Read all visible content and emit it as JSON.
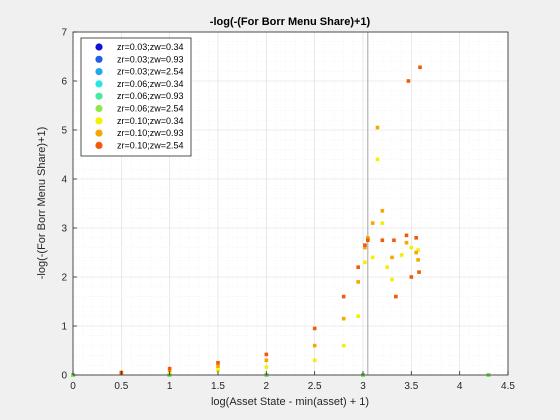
{
  "chart_data": {
    "type": "scatter",
    "title": "-log(-(For Borr Menu Share)+1)",
    "xlabel": "log(Asset State - min(asset) + 1)",
    "ylabel": "-log(-(For Borr Menu Share)+1)",
    "xlim": [
      0,
      4.5
    ],
    "ylim": [
      0,
      7
    ],
    "xticks": [
      "0",
      "0.5",
      "1",
      "1.5",
      "2",
      "2.5",
      "3",
      "3.5",
      "4",
      "4.5"
    ],
    "yticks": [
      "0",
      "1",
      "2",
      "3",
      "4",
      "5",
      "6",
      "7"
    ],
    "grid": true,
    "legend_position": "top-left",
    "reference_line_x": 3.05,
    "series": [
      {
        "name": "zr=0.03;zw=0.34",
        "color": "#1010d8",
        "points": [
          [
            0,
            0
          ],
          [
            1.0,
            0
          ],
          [
            2.0,
            0
          ],
          [
            3.0,
            0
          ],
          [
            4.3,
            0
          ]
        ]
      },
      {
        "name": "zr=0.03;zw=0.93",
        "color": "#1f5fe8",
        "points": [
          [
            0,
            0
          ],
          [
            1.0,
            0
          ],
          [
            2.0,
            0
          ],
          [
            3.0,
            0
          ],
          [
            4.3,
            0
          ]
        ]
      },
      {
        "name": "zr=0.03;zw=2.54",
        "color": "#22a6ee",
        "points": [
          [
            0,
            0
          ],
          [
            1.0,
            0
          ],
          [
            2.0,
            0
          ],
          [
            3.0,
            0
          ],
          [
            4.3,
            0
          ]
        ]
      },
      {
        "name": "zr=0.06;zw=0.34",
        "color": "#29e6e6",
        "points": [
          [
            0,
            0
          ],
          [
            1.0,
            0
          ],
          [
            2.0,
            0
          ],
          [
            3.0,
            0
          ],
          [
            4.3,
            0
          ]
        ]
      },
      {
        "name": "zr=0.06;zw=0.93",
        "color": "#48e8a0",
        "points": [
          [
            0,
            0
          ],
          [
            1.0,
            0
          ],
          [
            2.0,
            0
          ],
          [
            3.0,
            0
          ],
          [
            4.3,
            0
          ]
        ]
      },
      {
        "name": "zr=0.06;zw=2.54",
        "color": "#8ee848",
        "points": [
          [
            0,
            0
          ],
          [
            1.0,
            0
          ],
          [
            2.0,
            0
          ],
          [
            3.0,
            0
          ],
          [
            4.3,
            0
          ]
        ]
      },
      {
        "name": "zr=0.10;zw=0.34",
        "color": "#f2f200",
        "points": [
          [
            0.5,
            0.04
          ],
          [
            1.0,
            0.07
          ],
          [
            1.5,
            0.1
          ],
          [
            2.0,
            0.16
          ],
          [
            2.5,
            0.3
          ],
          [
            2.8,
            0.6
          ],
          [
            2.95,
            1.2
          ],
          [
            3.02,
            2.3
          ],
          [
            3.05,
            2.8
          ],
          [
            3.1,
            2.4
          ],
          [
            3.15,
            4.4
          ],
          [
            3.2,
            3.1
          ],
          [
            3.25,
            2.2
          ],
          [
            3.3,
            1.95
          ],
          [
            3.4,
            2.45
          ],
          [
            3.5,
            2.6
          ],
          [
            3.57,
            2.55
          ]
        ]
      },
      {
        "name": "zr=0.10;zw=0.93",
        "color": "#f5a800",
        "points": [
          [
            0.5,
            0.05
          ],
          [
            1.0,
            0.1
          ],
          [
            1.5,
            0.18
          ],
          [
            2.0,
            0.3
          ],
          [
            2.5,
            0.6
          ],
          [
            2.8,
            1.15
          ],
          [
            2.95,
            1.9
          ],
          [
            3.02,
            2.6
          ],
          [
            3.05,
            2.8
          ],
          [
            3.1,
            3.1
          ],
          [
            3.15,
            5.05
          ],
          [
            3.2,
            3.35
          ],
          [
            3.3,
            2.4
          ],
          [
            3.45,
            2.7
          ],
          [
            3.55,
            2.5
          ],
          [
            3.57,
            2.35
          ]
        ]
      },
      {
        "name": "zr=0.10;zw=2.54",
        "color": "#f05a0a",
        "points": [
          [
            0.5,
            0.05
          ],
          [
            1.0,
            0.13
          ],
          [
            1.5,
            0.25
          ],
          [
            2.0,
            0.42
          ],
          [
            2.5,
            0.95
          ],
          [
            2.8,
            1.6
          ],
          [
            2.95,
            2.2
          ],
          [
            3.02,
            2.65
          ],
          [
            3.05,
            2.75
          ],
          [
            3.2,
            2.75
          ],
          [
            3.32,
            2.75
          ],
          [
            3.45,
            2.85
          ],
          [
            3.55,
            2.8
          ],
          [
            3.58,
            2.1
          ],
          [
            3.59,
            6.28
          ],
          [
            3.47,
            6.0
          ],
          [
            3.34,
            1.6
          ],
          [
            3.5,
            2.0
          ]
        ]
      }
    ]
  }
}
